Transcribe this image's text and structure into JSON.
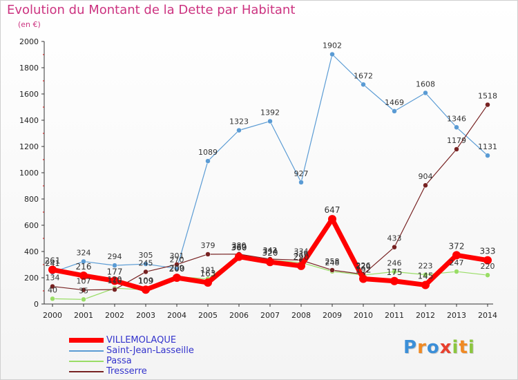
{
  "title": "Evolution du Montant de la Dette par Habitant",
  "subtitle": "(en €)",
  "logo": "Proxiti",
  "chart_data": {
    "type": "line",
    "title": "Evolution du Montant de la Dette par Habitant",
    "subtitle": "(en €)",
    "xlabel": "",
    "ylabel": "",
    "x": [
      2000,
      2001,
      2002,
      2003,
      2004,
      2005,
      2006,
      2007,
      2008,
      2009,
      2010,
      2011,
      2012,
      2013,
      2014
    ],
    "ylim": [
      0,
      2000
    ],
    "yticks": [
      0,
      200,
      400,
      600,
      800,
      1000,
      1200,
      1400,
      1600,
      1800,
      2000
    ],
    "grid": false,
    "legend_position": "bottom-left",
    "series": [
      {
        "name": "VILLEMOLAQUE",
        "color": "#ff0000",
        "values": [
          261,
          216,
          177,
          109,
          200,
          163,
          360,
          320,
          290,
          647,
          192,
          175,
          145,
          372,
          333
        ]
      },
      {
        "name": "Saint-Jean-Lasseille",
        "color": "#5a9bd4",
        "values": [
          241,
          324,
          294,
          305,
          270,
          1089,
          1323,
          1392,
          927,
          1902,
          1672,
          1469,
          1608,
          1346,
          1131
        ]
      },
      {
        "name": "Passa",
        "color": "#99dd66",
        "values": [
          40,
          35,
          120,
          109,
          209,
          191,
          369,
          334,
          316,
          248,
          220,
          246,
          223,
          247,
          220
        ]
      },
      {
        "name": "Tresserre",
        "color": "#772222",
        "values": [
          134,
          107,
          110,
          245,
          301,
          379,
          380,
          342,
          334,
          258,
          226,
          433,
          904,
          1179,
          1518
        ]
      }
    ],
    "data_labels": [
      [
        "261",
        "216",
        "177",
        "109",
        "200",
        "163",
        "360",
        "320",
        "290",
        "647",
        "192",
        "175",
        "145",
        "372",
        "333"
      ],
      [
        "241",
        "324",
        "294",
        "305",
        "270",
        "1089",
        "1323",
        "1392",
        "927",
        "1902",
        "1672",
        "1469",
        "1608",
        "1346",
        "1131"
      ],
      [
        "40",
        "35",
        "120",
        "109",
        "209",
        "191",
        "369",
        "334",
        "316",
        "248",
        "220",
        "246",
        "223",
        "247",
        "220"
      ],
      [
        "134",
        "107",
        "110",
        "245",
        "301",
        "379",
        "380",
        "342",
        "334",
        "258",
        "226",
        "433",
        "904",
        "1179",
        "1518"
      ]
    ]
  }
}
